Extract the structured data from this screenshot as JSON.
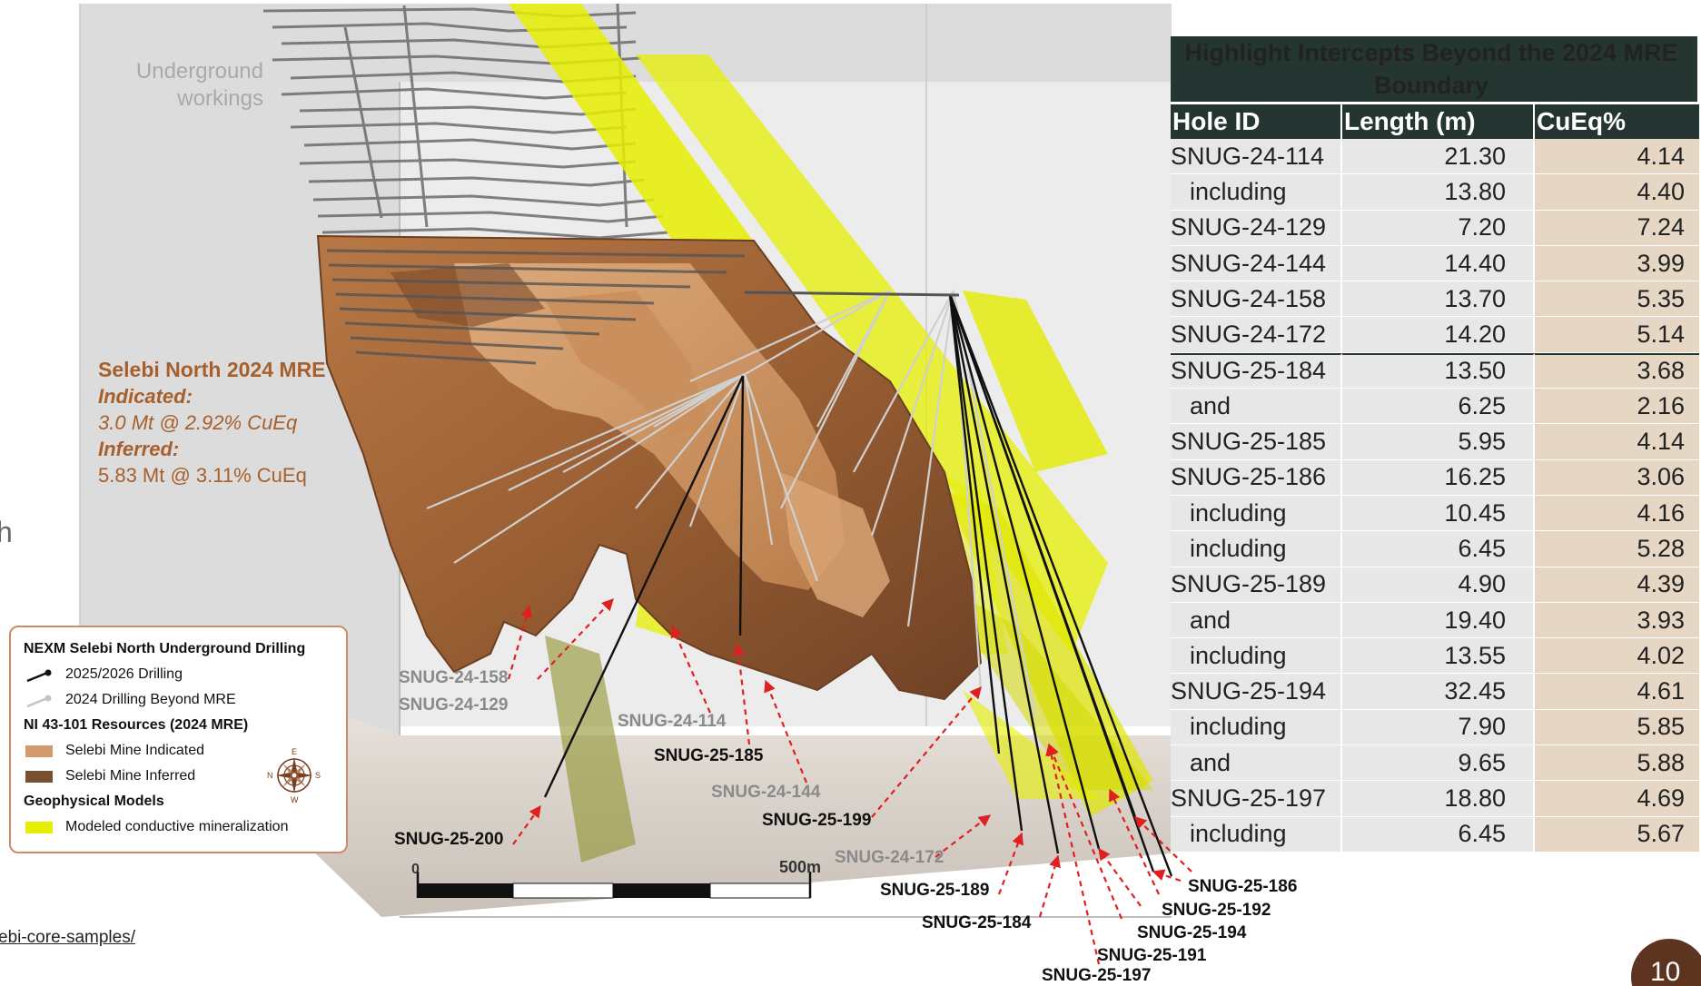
{
  "scene": {
    "underground_label_line1": "Underground",
    "underground_label_line2": "workings",
    "mre": {
      "title": "Selebi North 2024 MRE",
      "indicated_label": "Indicated:",
      "indicated_value": "3.0 Mt @ 2.92% CuEq",
      "inferred_label": "Inferred:",
      "inferred_value": "5.83 Mt @ 3.11% CuEq"
    },
    "scale_zero": "0",
    "scale_end": "500m",
    "hole_labels_gray": [
      "SNUG-24-158",
      "SNUG-24-129",
      "SNUG-24-114",
      "SNUG-24-144",
      "SNUG-24-172"
    ],
    "hole_labels_black": [
      "SNUG-25-185",
      "SNUG-25-200",
      "SNUG-25-199",
      "SNUG-25-189",
      "SNUG-25-184",
      "SNUG-25-186",
      "SNUG-25-192",
      "SNUG-25-194",
      "SNUG-25-191",
      "SNUG-25-197"
    ],
    "colors": {
      "indicated": "#d39a6c",
      "inferred": "#7a5032",
      "conductor": "#e6ef00",
      "arrow": "#e02020"
    }
  },
  "left_fragment": "h",
  "footer_link": "ebi-core-samples/",
  "legend": {
    "title": "NEXM Selebi North Underground Drilling",
    "drilling_2025": "2025/2026 Drilling",
    "drilling_2024": "2024 Drilling Beyond MRE",
    "resources_title": "NI 43-101 Resources (2024 MRE)",
    "indicated": "Selebi Mine Indicated",
    "inferred": "Selebi Mine Inferred",
    "geo_title": "Geophysical Models",
    "conductive": "Modeled conductive mineralization",
    "compass": {
      "n": "N",
      "s": "S",
      "e": "E",
      "w": "W"
    }
  },
  "table": {
    "title": "Highlight Intercepts Beyond the 2024 MRE Boundary",
    "headers": [
      "Hole ID",
      "Length (m)",
      "CuEq%"
    ],
    "rows": [
      {
        "id": "SNUG-24-114",
        "length": "21.30",
        "cueq": "4.14",
        "sub": false
      },
      {
        "id": "including",
        "length": "13.80",
        "cueq": "4.40",
        "sub": true
      },
      {
        "id": "SNUG-24-129",
        "length": "7.20",
        "cueq": "7.24",
        "sub": false
      },
      {
        "id": "SNUG-24-144",
        "length": "14.40",
        "cueq": "3.99",
        "sub": false
      },
      {
        "id": "SNUG-24-158",
        "length": "13.70",
        "cueq": "5.35",
        "sub": false
      },
      {
        "id": "SNUG-24-172",
        "length": "14.20",
        "cueq": "5.14",
        "sub": false
      },
      {
        "id": "SNUG-25-184",
        "length": "13.50",
        "cueq": "3.68",
        "sub": false
      },
      {
        "id": "and",
        "length": "6.25",
        "cueq": "2.16",
        "sub": true
      },
      {
        "id": "SNUG-25-185",
        "length": "5.95",
        "cueq": "4.14",
        "sub": false
      },
      {
        "id": "SNUG-25-186",
        "length": "16.25",
        "cueq": "3.06",
        "sub": false
      },
      {
        "id": "including",
        "length": "10.45",
        "cueq": "4.16",
        "sub": true
      },
      {
        "id": "including",
        "length": "6.45",
        "cueq": "5.28",
        "sub": true
      },
      {
        "id": "SNUG-25-189",
        "length": "4.90",
        "cueq": "4.39",
        "sub": false
      },
      {
        "id": "and",
        "length": "19.40",
        "cueq": "3.93",
        "sub": true
      },
      {
        "id": "including",
        "length": "13.55",
        "cueq": "4.02",
        "sub": true
      },
      {
        "id": "SNUG-25-194",
        "length": "32.45",
        "cueq": "4.61",
        "sub": false
      },
      {
        "id": "including",
        "length": "7.90",
        "cueq": "5.85",
        "sub": true
      },
      {
        "id": "and",
        "length": "9.65",
        "cueq": "5.88",
        "sub": true
      },
      {
        "id": "SNUG-25-197",
        "length": "18.80",
        "cueq": "4.69",
        "sub": false
      },
      {
        "id": "including",
        "length": "6.45",
        "cueq": "5.67",
        "sub": true
      }
    ]
  },
  "page_number": "10"
}
